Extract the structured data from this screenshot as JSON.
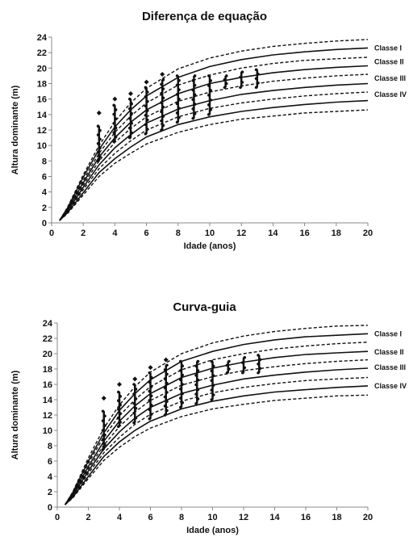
{
  "chart_data": [
    {
      "type": "line",
      "title": "Diferença de equação",
      "xlabel": "Idade (anos)",
      "ylabel": "Altura dominante (m)",
      "xlim": [
        0,
        20
      ],
      "ylim": [
        0,
        24
      ],
      "xticks": [
        "0",
        "2",
        "4",
        "6",
        "8",
        "10",
        "12",
        "14",
        "16",
        "18",
        "20"
      ],
      "yticks": [
        "0",
        "2",
        "4",
        "6",
        "8",
        "10",
        "12",
        "14",
        "16",
        "18",
        "20",
        "22",
        "24"
      ],
      "grid": false,
      "series": [
        {
          "style": "dashed",
          "x": [
            0.5,
            1,
            2,
            3,
            4,
            5,
            6,
            8,
            10,
            12,
            14,
            16,
            18,
            20
          ],
          "y": [
            0.3,
            2.0,
            6.2,
            10.0,
            13.1,
            15.5,
            17.4,
            19.9,
            21.3,
            22.2,
            22.8,
            23.2,
            23.5,
            23.7
          ]
        },
        {
          "name": "Classe I",
          "style": "solid",
          "x": [
            0.5,
            1,
            2,
            3,
            4,
            5,
            6,
            8,
            10,
            12,
            14,
            16,
            18,
            20
          ],
          "y": [
            0.3,
            1.9,
            5.9,
            9.5,
            12.4,
            14.6,
            16.4,
            18.8,
            20.2,
            21.1,
            21.7,
            22.1,
            22.4,
            22.6
          ]
        },
        {
          "style": "dashed",
          "x": [
            0.5,
            1,
            2,
            3,
            4,
            5,
            6,
            8,
            10,
            12,
            14,
            16,
            18,
            20
          ],
          "y": [
            0.3,
            1.8,
            5.5,
            9.0,
            11.7,
            13.8,
            15.5,
            17.8,
            19.1,
            20.0,
            20.6,
            21.0,
            21.2,
            21.4
          ]
        },
        {
          "name": "Classe II",
          "style": "solid",
          "x": [
            0.5,
            1,
            2,
            3,
            4,
            5,
            6,
            8,
            10,
            12,
            14,
            16,
            18,
            20
          ],
          "y": [
            0.3,
            1.7,
            5.2,
            8.5,
            11.0,
            13.0,
            14.6,
            16.7,
            18.0,
            18.8,
            19.4,
            19.8,
            20.1,
            20.3
          ]
        },
        {
          "style": "dashed",
          "x": [
            0.5,
            1,
            2,
            3,
            4,
            5,
            6,
            8,
            10,
            12,
            14,
            16,
            18,
            20
          ],
          "y": [
            0.3,
            1.6,
            4.9,
            8.0,
            10.4,
            12.2,
            13.7,
            15.7,
            16.9,
            17.7,
            18.3,
            18.7,
            19.0,
            19.2
          ]
        },
        {
          "name": "Classe III",
          "style": "solid",
          "x": [
            0.5,
            1,
            2,
            3,
            4,
            5,
            6,
            8,
            10,
            12,
            14,
            16,
            18,
            20
          ],
          "y": [
            0.3,
            1.5,
            4.6,
            7.5,
            9.7,
            11.4,
            12.9,
            14.7,
            15.8,
            16.6,
            17.1,
            17.5,
            17.8,
            18.0
          ]
        },
        {
          "style": "dashed",
          "x": [
            0.5,
            1,
            2,
            3,
            4,
            5,
            6,
            8,
            10,
            12,
            14,
            16,
            18,
            20
          ],
          "y": [
            0.3,
            1.4,
            4.3,
            7.0,
            9.0,
            10.6,
            12.0,
            13.7,
            14.8,
            15.5,
            16.0,
            16.4,
            16.7,
            16.9
          ]
        },
        {
          "name": "Classe IV",
          "style": "solid",
          "x": [
            0.5,
            1,
            2,
            3,
            4,
            5,
            6,
            8,
            10,
            12,
            14,
            16,
            18,
            20
          ],
          "y": [
            0.3,
            1.3,
            3.9,
            6.5,
            8.3,
            9.8,
            11.1,
            12.7,
            13.7,
            14.4,
            14.9,
            15.3,
            15.6,
            15.8
          ]
        },
        {
          "style": "dashed",
          "x": [
            0.5,
            1,
            2,
            3,
            4,
            5,
            6,
            8,
            10,
            12,
            14,
            16,
            18,
            20
          ],
          "y": [
            0.3,
            1.2,
            3.6,
            6.0,
            7.7,
            9.0,
            10.2,
            11.7,
            12.7,
            13.4,
            13.8,
            14.2,
            14.4,
            14.6
          ]
        }
      ],
      "class_labels": [
        {
          "text": "Classe I",
          "y": 22.6
        },
        {
          "text": "Classe II",
          "y": 20.8
        },
        {
          "text": "Classe III",
          "y": 18.7
        },
        {
          "text": "Classe IV",
          "y": 16.6
        }
      ],
      "observations": [
        {
          "x": 3,
          "ymin": 8.0,
          "ymax": 12.5,
          "outlier": 14.2
        },
        {
          "x": 4,
          "ymin": 10.5,
          "ymax": 15.2,
          "outlier": 16.0
        },
        {
          "x": 5,
          "ymin": 11.0,
          "ymax": 16.0,
          "outlier": 16.7
        },
        {
          "x": 6,
          "ymin": 11.5,
          "ymax": 17.5,
          "outlier": 18.2
        },
        {
          "x": 7,
          "ymin": 12.0,
          "ymax": 18.5,
          "outlier": 19.2
        },
        {
          "x": 8,
          "ymin": 13.0,
          "ymax": 19.0,
          "outlier": null
        },
        {
          "x": 9,
          "ymin": 13.5,
          "ymax": 19.0,
          "outlier": null
        },
        {
          "x": 10,
          "ymin": 14.0,
          "ymax": 19.0,
          "outlier": null
        },
        {
          "x": 11,
          "ymin": 17.5,
          "ymax": 19.0,
          "outlier": null
        },
        {
          "x": 12,
          "ymin": 17.5,
          "ymax": 19.5,
          "outlier": null
        },
        {
          "x": 13,
          "ymin": 17.5,
          "ymax": 19.8,
          "outlier": null
        }
      ]
    },
    {
      "type": "line",
      "title": "Curva-guia",
      "xlabel": "Idade (anos)",
      "ylabel": "Altura dominante (m)",
      "xlim": [
        0,
        20
      ],
      "ylim": [
        0,
        24
      ],
      "xticks": [
        "0",
        "2",
        "4",
        "6",
        "8",
        "10",
        "12",
        "14",
        "16",
        "18",
        "20"
      ],
      "yticks": [
        "0",
        "2",
        "4",
        "6",
        "8",
        "10",
        "12",
        "14",
        "16",
        "18",
        "20",
        "22",
        "24"
      ],
      "grid": false,
      "series": [
        {
          "style": "dashed",
          "x": [
            0.5,
            1,
            2,
            3,
            4,
            5,
            6,
            8,
            10,
            12,
            14,
            16,
            18,
            20
          ],
          "y": [
            0.3,
            2.0,
            6.4,
            10.3,
            13.3,
            15.7,
            17.6,
            20.0,
            21.4,
            22.3,
            22.9,
            23.3,
            23.6,
            23.7
          ]
        },
        {
          "name": "Classe I",
          "style": "solid",
          "x": [
            0.5,
            1,
            2,
            3,
            4,
            5,
            6,
            8,
            10,
            12,
            14,
            16,
            18,
            20
          ],
          "y": [
            0.3,
            1.9,
            6.0,
            9.7,
            12.6,
            14.8,
            16.6,
            19.0,
            20.3,
            21.2,
            21.8,
            22.2,
            22.4,
            22.6
          ]
        },
        {
          "style": "dashed",
          "x": [
            0.5,
            1,
            2,
            3,
            4,
            5,
            6,
            8,
            10,
            12,
            14,
            16,
            18,
            20
          ],
          "y": [
            0.3,
            1.8,
            5.7,
            9.2,
            11.9,
            14.0,
            15.7,
            17.9,
            19.2,
            20.0,
            20.6,
            21.0,
            21.3,
            21.5
          ]
        },
        {
          "name": "Classe II",
          "style": "solid",
          "x": [
            0.5,
            1,
            2,
            3,
            4,
            5,
            6,
            8,
            10,
            12,
            14,
            16,
            18,
            20
          ],
          "y": [
            0.3,
            1.7,
            5.3,
            8.6,
            11.2,
            13.2,
            14.8,
            16.9,
            18.1,
            18.9,
            19.5,
            19.9,
            20.1,
            20.3
          ]
        },
        {
          "style": "dashed",
          "x": [
            0.5,
            1,
            2,
            3,
            4,
            5,
            6,
            8,
            10,
            12,
            14,
            16,
            18,
            20
          ],
          "y": [
            0.3,
            1.6,
            5.0,
            8.1,
            10.5,
            12.4,
            13.9,
            15.9,
            17.0,
            17.8,
            18.3,
            18.7,
            19.0,
            19.2
          ]
        },
        {
          "name": "Classe III",
          "style": "solid",
          "x": [
            0.5,
            1,
            2,
            3,
            4,
            5,
            6,
            8,
            10,
            12,
            14,
            16,
            18,
            20
          ],
          "y": [
            0.3,
            1.5,
            4.7,
            7.6,
            9.8,
            11.6,
            13.0,
            14.8,
            15.9,
            16.7,
            17.2,
            17.6,
            17.9,
            18.1
          ]
        },
        {
          "style": "dashed",
          "x": [
            0.5,
            1,
            2,
            3,
            4,
            5,
            6,
            8,
            10,
            12,
            14,
            16,
            18,
            20
          ],
          "y": [
            0.3,
            1.4,
            4.4,
            7.1,
            9.1,
            10.8,
            12.1,
            13.8,
            14.9,
            15.6,
            16.1,
            16.5,
            16.7,
            16.9
          ]
        },
        {
          "name": "Classe IV",
          "style": "solid",
          "x": [
            0.5,
            1,
            2,
            3,
            4,
            5,
            6,
            8,
            10,
            12,
            14,
            16,
            18,
            20
          ],
          "y": [
            0.3,
            1.3,
            4.0,
            6.6,
            8.5,
            10.0,
            11.2,
            12.8,
            13.8,
            14.5,
            15.0,
            15.3,
            15.6,
            15.8
          ]
        },
        {
          "style": "dashed",
          "x": [
            0.5,
            1,
            2,
            3,
            4,
            5,
            6,
            8,
            10,
            12,
            14,
            16,
            18,
            20
          ],
          "y": [
            0.3,
            1.2,
            3.7,
            6.1,
            7.8,
            9.2,
            10.3,
            11.8,
            12.8,
            13.4,
            13.9,
            14.2,
            14.5,
            14.6
          ]
        }
      ],
      "class_labels": [
        {
          "text": "Classe I",
          "y": 22.6
        },
        {
          "text": "Classe II",
          "y": 20.2
        },
        {
          "text": "Classe III",
          "y": 18.2
        },
        {
          "text": "Classe IV",
          "y": 15.8
        }
      ],
      "observations": [
        {
          "x": 3,
          "ymin": 7.5,
          "ymax": 12.5,
          "outlier": 14.2
        },
        {
          "x": 4,
          "ymin": 10.5,
          "ymax": 15.0,
          "outlier": 16.0
        },
        {
          "x": 5,
          "ymin": 11.0,
          "ymax": 16.0,
          "outlier": 16.7
        },
        {
          "x": 6,
          "ymin": 11.5,
          "ymax": 17.5,
          "outlier": 18.2
        },
        {
          "x": 7,
          "ymin": 12.0,
          "ymax": 18.5,
          "outlier": 19.2
        },
        {
          "x": 8,
          "ymin": 13.0,
          "ymax": 19.0,
          "outlier": null
        },
        {
          "x": 9,
          "ymin": 13.5,
          "ymax": 19.0,
          "outlier": null
        },
        {
          "x": 10,
          "ymin": 14.0,
          "ymax": 19.0,
          "outlier": null
        },
        {
          "x": 11,
          "ymin": 17.5,
          "ymax": 19.0,
          "outlier": null
        },
        {
          "x": 12,
          "ymin": 17.5,
          "ymax": 19.5,
          "outlier": null
        },
        {
          "x": 13,
          "ymin": 17.5,
          "ymax": 19.8,
          "outlier": null
        }
      ]
    }
  ]
}
